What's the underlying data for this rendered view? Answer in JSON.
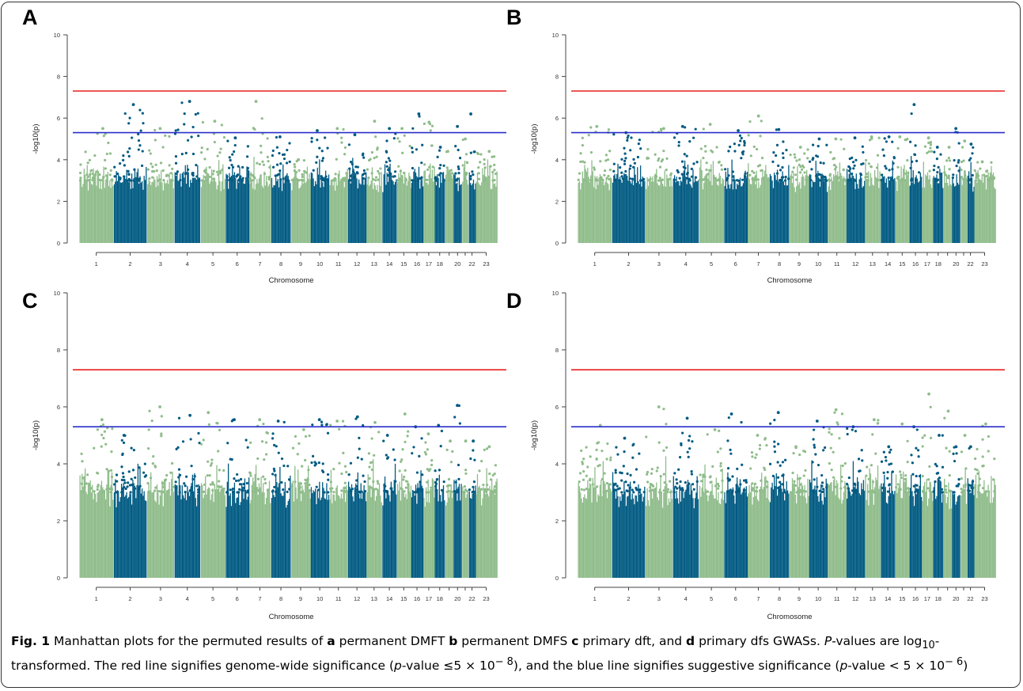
{
  "chart_data": [
    {
      "panel": "A",
      "type": "scatter",
      "subtype": "manhattan",
      "xlabel": "Chromosome",
      "ylabel": "-log10(p)",
      "ylim": [
        0,
        10
      ],
      "yticks": [
        "0",
        "2",
        "4",
        "6",
        "8",
        "10"
      ],
      "chromosome_labels": [
        "1",
        "2",
        "3",
        "4",
        "5",
        "6",
        "7",
        "8",
        "9",
        "10",
        "11",
        "12",
        "13",
        "14",
        "15",
        "16",
        "17",
        "18",
        "20",
        "22",
        "23"
      ],
      "thresholds": [
        {
          "value": 7.3,
          "color": "#e8201f"
        },
        {
          "value": 5.3,
          "color": "#2a2fc9"
        }
      ],
      "chromosome_max": [
        5.5,
        6.65,
        5.5,
        6.8,
        5.85,
        5.05,
        6.8,
        5.1,
        4.0,
        5.4,
        5.5,
        5.2,
        5.85,
        5.5,
        5.5,
        6.2,
        5.8,
        4.6,
        4.4,
        5.6,
        5.0,
        6.2,
        4.4
      ]
    },
    {
      "panel": "B",
      "type": "scatter",
      "subtype": "manhattan",
      "xlabel": "Chromosome",
      "ylabel": "-log10(p)",
      "ylim": [
        0,
        10
      ],
      "yticks": [
        "0",
        "2",
        "4",
        "6",
        "8",
        "10"
      ],
      "chromosome_labels": [
        "1",
        "2",
        "3",
        "4",
        "5",
        "6",
        "7",
        "8",
        "9",
        "10",
        "11",
        "12",
        "13",
        "14",
        "15",
        "16",
        "17",
        "18",
        "20",
        "22",
        "23"
      ],
      "thresholds": [
        {
          "value": 7.3,
          "color": "#e8201f"
        },
        {
          "value": 5.3,
          "color": "#2a2fc9"
        }
      ],
      "chromosome_max": [
        5.6,
        5.3,
        5.5,
        5.6,
        5.7,
        5.4,
        6.1,
        5.45,
        4.6,
        5.0,
        5.0,
        5.05,
        5.1,
        5.1,
        5.1,
        6.65,
        5.05,
        4.6,
        4.6,
        5.5,
        4.9,
        4.75,
        3.9
      ]
    },
    {
      "panel": "C",
      "type": "scatter",
      "subtype": "manhattan",
      "xlabel": "Chromosome",
      "ylabel": "-log10(p)",
      "ylim": [
        0,
        10
      ],
      "yticks": [
        "0",
        "2",
        "4",
        "6",
        "8",
        "10"
      ],
      "chromosome_labels": [
        "1",
        "2",
        "3",
        "4",
        "5",
        "6",
        "7",
        "8",
        "9",
        "10",
        "11",
        "12",
        "13",
        "14",
        "15",
        "16",
        "17",
        "18",
        "20",
        "22",
        "23"
      ],
      "thresholds": [
        {
          "value": 7.3,
          "color": "#e8201f"
        },
        {
          "value": 5.3,
          "color": "#2a2fc9"
        }
      ],
      "chromosome_max": [
        5.55,
        5.0,
        6.0,
        5.7,
        5.8,
        5.55,
        5.55,
        5.5,
        5.2,
        5.55,
        5.5,
        5.65,
        5.45,
        5.0,
        5.75,
        5.3,
        5.05,
        5.35,
        4.8,
        6.05,
        4.8,
        4.8,
        4.6
      ]
    },
    {
      "panel": "D",
      "type": "scatter",
      "subtype": "manhattan",
      "xlabel": "Chromosome",
      "ylabel": "-log10(p)",
      "ylim": [
        0,
        10
      ],
      "yticks": [
        "0",
        "2",
        "4",
        "6",
        "8",
        "10"
      ],
      "chromosome_labels": [
        "1",
        "2",
        "3",
        "4",
        "5",
        "6",
        "7",
        "8",
        "9",
        "10",
        "11",
        "12",
        "13",
        "14",
        "15",
        "16",
        "17",
        "18",
        "20",
        "22",
        "23"
      ],
      "thresholds": [
        {
          "value": 7.3,
          "color": "#e8201f"
        },
        {
          "value": 5.3,
          "color": "#2a2fc9"
        }
      ],
      "chromosome_max": [
        5.35,
        4.9,
        6.0,
        5.6,
        5.2,
        5.75,
        5.0,
        5.8,
        4.6,
        5.5,
        5.9,
        5.3,
        5.55,
        4.6,
        5.4,
        5.3,
        6.45,
        5.0,
        5.85,
        4.6,
        5.0,
        4.6,
        5.4
      ]
    }
  ],
  "colors": {
    "light": "#8fbc8a",
    "dark": "#005a82",
    "axis": "#444444"
  },
  "caption": {
    "fig_label": "Fig. 1",
    "t1": " Manhattan plots for the permuted results of ",
    "a": "a",
    "t2": " permanent DMFT ",
    "b": "b",
    "t3": " permanent DMFS ",
    "c": "c",
    "t4": " primary dft, and ",
    "d": "d",
    "t5": " primary dfs GWASs. ",
    "p_italic": "P",
    "t6": "-values are log",
    "sub10": "10",
    "t7": "-transformed. The red line signifies genome-wide significance (",
    "p2": "p",
    "t8": "-value ≤5 × 10",
    "sup1": "− 8",
    "t9": "), and the blue line signifies suggestive significance (",
    "p3": "p",
    "t10": "-value < 5 × 10",
    "sup2": "− 6",
    "t11": ")"
  }
}
